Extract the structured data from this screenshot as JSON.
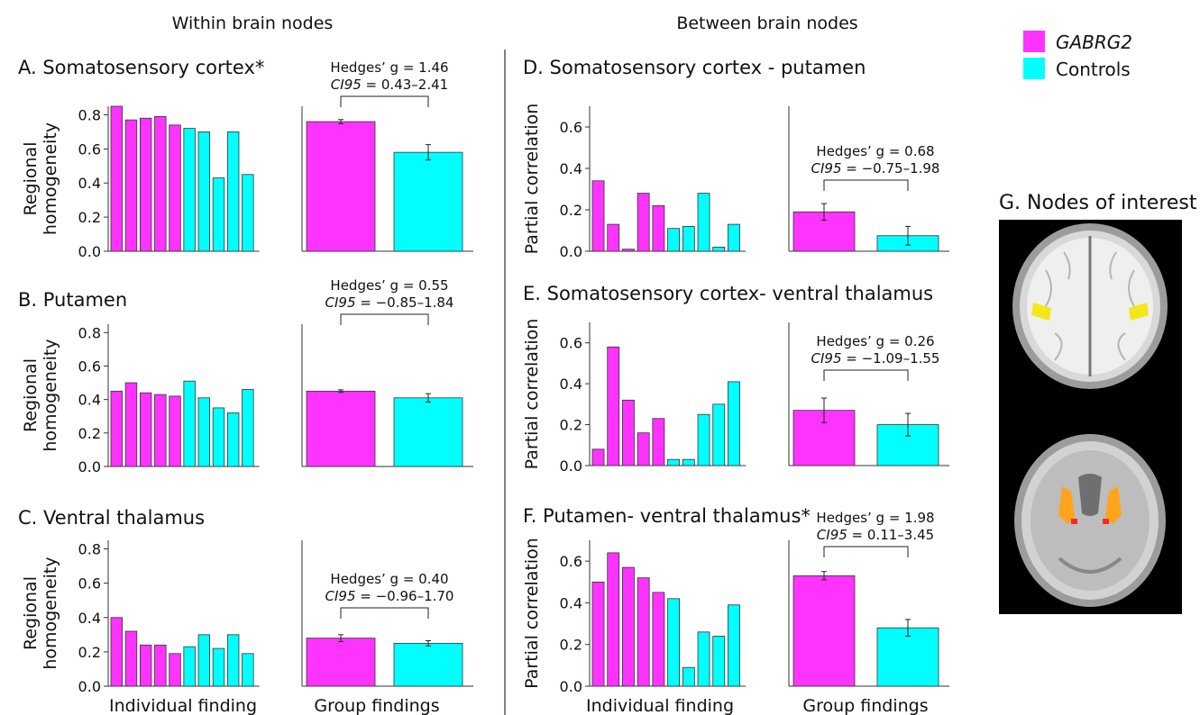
{
  "headers": {
    "within": "Within brain nodes",
    "between": "Between brain nodes"
  },
  "legend": [
    {
      "label": "GABRG2",
      "color": "#ff33ff",
      "italic": true
    },
    {
      "label": "Controls",
      "color": "#00ffff",
      "italic": false
    }
  ],
  "colors": {
    "gabrg2": "#ff33ff",
    "controls": "#00ffff",
    "axis": "#333333"
  },
  "xlabels": {
    "individual": "Individual finding",
    "group": "Group findings"
  },
  "brain": {
    "title": "G. Nodes of interest",
    "overlay_colors": [
      "#f5e61a",
      "#ffa41c",
      "#ff2a1a"
    ]
  },
  "chart_data": [
    {
      "panel": "A",
      "title": "A. Somatosensory cortex*",
      "type": "bar",
      "ylabel": [
        "Regional",
        "homogeneity"
      ],
      "ylim": [
        0,
        0.85
      ],
      "yticks": [
        "0.0",
        "0.2",
        "0.4",
        "0.6",
        "0.8"
      ],
      "individual": [
        0.85,
        0.77,
        0.78,
        0.79,
        0.74,
        0.72,
        0.7,
        0.43,
        0.7,
        0.45
      ],
      "individual_groups": [
        "GABRG2",
        "GABRG2",
        "GABRG2",
        "GABRG2",
        "GABRG2",
        "Controls",
        "Controls",
        "Controls",
        "Controls",
        "Controls"
      ],
      "group": [
        {
          "name": "GABRG2",
          "value": 0.76,
          "err": 0.012
        },
        {
          "name": "Controls",
          "value": 0.58,
          "err": 0.045
        }
      ],
      "stats": {
        "g": "Hedges’ g = 1.46",
        "ci_label": "CI95",
        "ci_value": " = 0.43–2.41"
      }
    },
    {
      "panel": "B",
      "title": "B. Putamen",
      "type": "bar",
      "ylabel": [
        "Regional",
        "homogeneity"
      ],
      "ylim": [
        0,
        0.85
      ],
      "yticks": [
        "0.0",
        "0.2",
        "0.4",
        "0.6",
        "0.8"
      ],
      "individual": [
        0.45,
        0.5,
        0.44,
        0.43,
        0.42,
        0.51,
        0.41,
        0.35,
        0.32,
        0.46
      ],
      "individual_groups": [
        "GABRG2",
        "GABRG2",
        "GABRG2",
        "GABRG2",
        "GABRG2",
        "Controls",
        "Controls",
        "Controls",
        "Controls",
        "Controls"
      ],
      "group": [
        {
          "name": "GABRG2",
          "value": 0.45,
          "err": 0.008
        },
        {
          "name": "Controls",
          "value": 0.41,
          "err": 0.025
        }
      ],
      "stats": {
        "g": "Hedges’ g = 0.55",
        "ci_label": "CI95",
        "ci_value": " = −0.85–1.84"
      }
    },
    {
      "panel": "C",
      "title": "C. Ventral thalamus",
      "type": "bar",
      "ylabel": [
        "Regional",
        "homogeneity"
      ],
      "ylim": [
        0,
        0.85
      ],
      "yticks": [
        "0.0",
        "0.2",
        "0.4",
        "0.6",
        "0.8"
      ],
      "individual": [
        0.4,
        0.32,
        0.24,
        0.24,
        0.19,
        0.23,
        0.3,
        0.22,
        0.3,
        0.19
      ],
      "individual_groups": [
        "GABRG2",
        "GABRG2",
        "GABRG2",
        "GABRG2",
        "GABRG2",
        "Controls",
        "Controls",
        "Controls",
        "Controls",
        "Controls"
      ],
      "group": [
        {
          "name": "GABRG2",
          "value": 0.28,
          "err": 0.02
        },
        {
          "name": "Controls",
          "value": 0.25,
          "err": 0.015
        }
      ],
      "stats": {
        "g": "Hedges’ g = 0.40",
        "ci_label": "CI95",
        "ci_value": " = −0.96–1.70"
      }
    },
    {
      "panel": "D",
      "title": "D. Somatosensory cortex - putamen",
      "type": "bar",
      "ylabel": [
        "Partial correlation"
      ],
      "ylim": [
        0,
        0.7
      ],
      "yticks": [
        "0.0",
        "0.2",
        "0.4",
        "0.6"
      ],
      "individual": [
        0.34,
        0.13,
        0.01,
        0.28,
        0.22,
        0.11,
        0.12,
        0.28,
        0.02,
        0.13
      ],
      "individual_groups": [
        "GABRG2",
        "GABRG2",
        "GABRG2",
        "GABRG2",
        "GABRG2",
        "Controls",
        "Controls",
        "Controls",
        "Controls",
        "Controls"
      ],
      "group": [
        {
          "name": "GABRG2",
          "value": 0.19,
          "err": 0.04
        },
        {
          "name": "Controls",
          "value": 0.075,
          "err": 0.045
        }
      ],
      "stats": {
        "g": "Hedges’ g = 0.68",
        "ci_label": "CI95",
        "ci_value": " = −0.75–1.98"
      }
    },
    {
      "panel": "E",
      "title": "E. Somatosensory cortex- ventral thalamus",
      "type": "bar",
      "ylabel": [
        "Partial correlation"
      ],
      "ylim": [
        0,
        0.7
      ],
      "yticks": [
        "0.0",
        "0.2",
        "0.4",
        "0.6"
      ],
      "individual": [
        0.08,
        0.58,
        0.32,
        0.16,
        0.23,
        0.03,
        0.03,
        0.25,
        0.3,
        0.41
      ],
      "individual_groups": [
        "GABRG2",
        "GABRG2",
        "GABRG2",
        "GABRG2",
        "GABRG2",
        "Controls",
        "Controls",
        "Controls",
        "Controls",
        "Controls"
      ],
      "group": [
        {
          "name": "GABRG2",
          "value": 0.27,
          "err": 0.06
        },
        {
          "name": "Controls",
          "value": 0.2,
          "err": 0.055
        }
      ],
      "stats": {
        "g": "Hedges’ g = 0.26",
        "ci_label": "CI95",
        "ci_value": " = −1.09–1.55"
      }
    },
    {
      "panel": "F",
      "title": "F. Putamen- ventral thalamus*",
      "type": "bar",
      "ylabel": [
        "Partial correlation"
      ],
      "ylim": [
        0,
        0.7
      ],
      "yticks": [
        "0.0",
        "0.2",
        "0.4",
        "0.6"
      ],
      "individual": [
        0.5,
        0.64,
        0.57,
        0.52,
        0.45,
        0.42,
        0.09,
        0.26,
        0.24,
        0.39
      ],
      "individual_groups": [
        "GABRG2",
        "GABRG2",
        "GABRG2",
        "GABRG2",
        "GABRG2",
        "Controls",
        "Controls",
        "Controls",
        "Controls",
        "Controls"
      ],
      "group": [
        {
          "name": "GABRG2",
          "value": 0.53,
          "err": 0.02
        },
        {
          "name": "Controls",
          "value": 0.28,
          "err": 0.04
        }
      ],
      "stats": {
        "g": "Hedges’ g = 1.98",
        "ci_label": "CI95",
        "ci_value": " = 0.11–3.45"
      }
    }
  ]
}
